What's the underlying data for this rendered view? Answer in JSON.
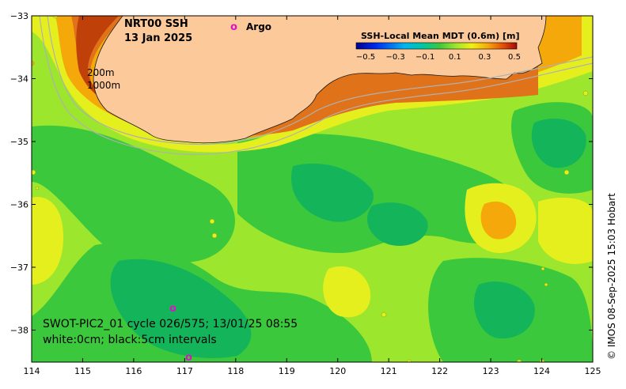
{
  "title_line1": "NRT00 SSH",
  "title_line2": "13 Jan 2025",
  "argo_marker": "o",
  "argo_label": "Argo",
  "colorbar": {
    "title": "SSH-Local Mean MDT (0.6m) [m]",
    "ticks": [
      "−0.5",
      "−0.3",
      "−0.1",
      "0.1",
      "0.3",
      "0.5"
    ]
  },
  "isobaths": [
    "200m",
    "1000m"
  ],
  "swath_line1": "SWOT-PIC2_01 cycle 026/575; 13/01/25 08:55",
  "swath_line2": "white:0cm; black:5cm intervals",
  "credit": "© IMOS 08-Sep-2025 15:03 Hobart",
  "axes": {
    "x_ticks": [
      "114",
      "115",
      "116",
      "117",
      "118",
      "119",
      "120",
      "121",
      "122",
      "123",
      "124",
      "125"
    ],
    "y_ticks": [
      "−33",
      "−34",
      "−35",
      "−36",
      "−37",
      "−38"
    ]
  },
  "colors": {
    "land": "#FBC99A",
    "sea_base": "#9CE62E",
    "sea_green": "#3CC83C",
    "sea_dark": "#14B45A",
    "sea_yellow": "#E6EF1E",
    "sea_orange": "#F5A80A",
    "argo": "#E010C8"
  }
}
